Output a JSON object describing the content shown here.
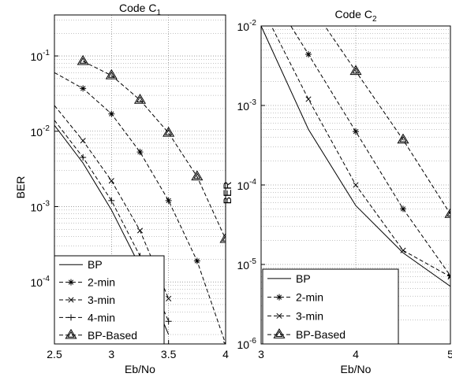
{
  "chart_data": [
    {
      "type": "line",
      "title": "Code C",
      "title_subscript": "1",
      "xlabel": "Eb/No",
      "ylabel": "BER",
      "log_y": true,
      "grid": true,
      "legend": "lower left",
      "xlim": [
        2.5,
        4
      ],
      "xticks": [
        2.5,
        3,
        3.5,
        4
      ],
      "ylim": [
        1.5e-05,
        0.35
      ],
      "yticks": [
        {
          "value": 0.0001,
          "label": "10",
          "exponent": "-4"
        },
        {
          "value": 0.001,
          "label": "10",
          "exponent": "-3"
        },
        {
          "value": 0.01,
          "label": "10",
          "exponent": "-2"
        },
        {
          "value": 0.1,
          "label": "10",
          "exponent": "-1"
        }
      ],
      "series": [
        {
          "name": "BP",
          "color": "#000000",
          "dashed": false,
          "marker": "none",
          "x": [
            2.5,
            2.75,
            3,
            3.25,
            3.5
          ],
          "values": [
            0.012,
            0.0038,
            0.0009,
            0.00016,
            2e-05
          ]
        },
        {
          "name": "2-min",
          "color": "#000000",
          "dashed": true,
          "marker": "*",
          "x": [
            2.5,
            2.75,
            3,
            3.25,
            3.5,
            3.75,
            4
          ],
          "values": [
            0.06,
            0.037,
            0.017,
            0.0053,
            0.0012,
            0.00019,
            1.5e-05
          ]
        },
        {
          "name": "3-min",
          "color": "#000000",
          "dashed": true,
          "marker": "x",
          "x": [
            2.5,
            2.75,
            3,
            3.25,
            3.5
          ],
          "values": [
            0.022,
            0.0075,
            0.0022,
            0.00048,
            6e-05
          ]
        },
        {
          "name": "4-min",
          "color": "#000000",
          "dashed": true,
          "marker": "+",
          "x": [
            2.5,
            2.75,
            3,
            3.25,
            3.5
          ],
          "values": [
            0.014,
            0.0045,
            0.0012,
            0.00022,
            3e-05
          ]
        },
        {
          "name": "BP-Based",
          "color": "#000000",
          "dashed": true,
          "marker": "^",
          "x": [
            2.75,
            3,
            3.25,
            3.5,
            3.75,
            4
          ],
          "values": [
            0.085,
            0.055,
            0.026,
            0.0095,
            0.0025,
            0.00037
          ]
        }
      ]
    },
    {
      "type": "line",
      "title": "Code C",
      "title_subscript": "2",
      "xlabel": "Eb/No",
      "ylabel": "BER",
      "log_y": true,
      "grid": true,
      "legend": "lower left",
      "xlim": [
        3,
        5
      ],
      "xticks": [
        3,
        4,
        5
      ],
      "ylim": [
        1e-06,
        0.01
      ],
      "yticks": [
        {
          "value": 1e-06,
          "label": "10",
          "exponent": "-6"
        },
        {
          "value": 1e-05,
          "label": "10",
          "exponent": "-5"
        },
        {
          "value": 0.0001,
          "label": "10",
          "exponent": "-4"
        },
        {
          "value": 0.001,
          "label": "10",
          "exponent": "-3"
        },
        {
          "value": 0.01,
          "label": "10",
          "exponent": "-2"
        }
      ],
      "series": [
        {
          "name": "BP",
          "color": "#000000",
          "dashed": false,
          "marker": "none",
          "x": [
            3,
            3.5,
            4,
            4.5,
            5
          ],
          "values": [
            0.01,
            0.0005,
            5.5e-05,
            1.4e-05,
            5.3e-06
          ]
        },
        {
          "name": "2-min",
          "color": "#000000",
          "dashed": true,
          "marker": "*",
          "x": [
            3,
            3.5,
            4,
            4.5,
            5
          ],
          "values": [
            0.04,
            0.0044,
            0.00047,
            5e-05,
            7.2e-06
          ]
        },
        {
          "name": "3-min",
          "color": "#000000",
          "dashed": true,
          "marker": "x",
          "x": [
            3,
            3.5,
            4,
            4.5,
            5
          ],
          "values": [
            0.018,
            0.0012,
            0.0001,
            1.5e-05,
            7e-06
          ]
        },
        {
          "name": "BP-Based",
          "color": "#000000",
          "dashed": true,
          "marker": "^",
          "x": [
            3.5,
            4,
            4.5,
            5
          ],
          "values": [
            0.02,
            0.0027,
            0.00037,
            4.3e-05
          ]
        }
      ]
    }
  ]
}
